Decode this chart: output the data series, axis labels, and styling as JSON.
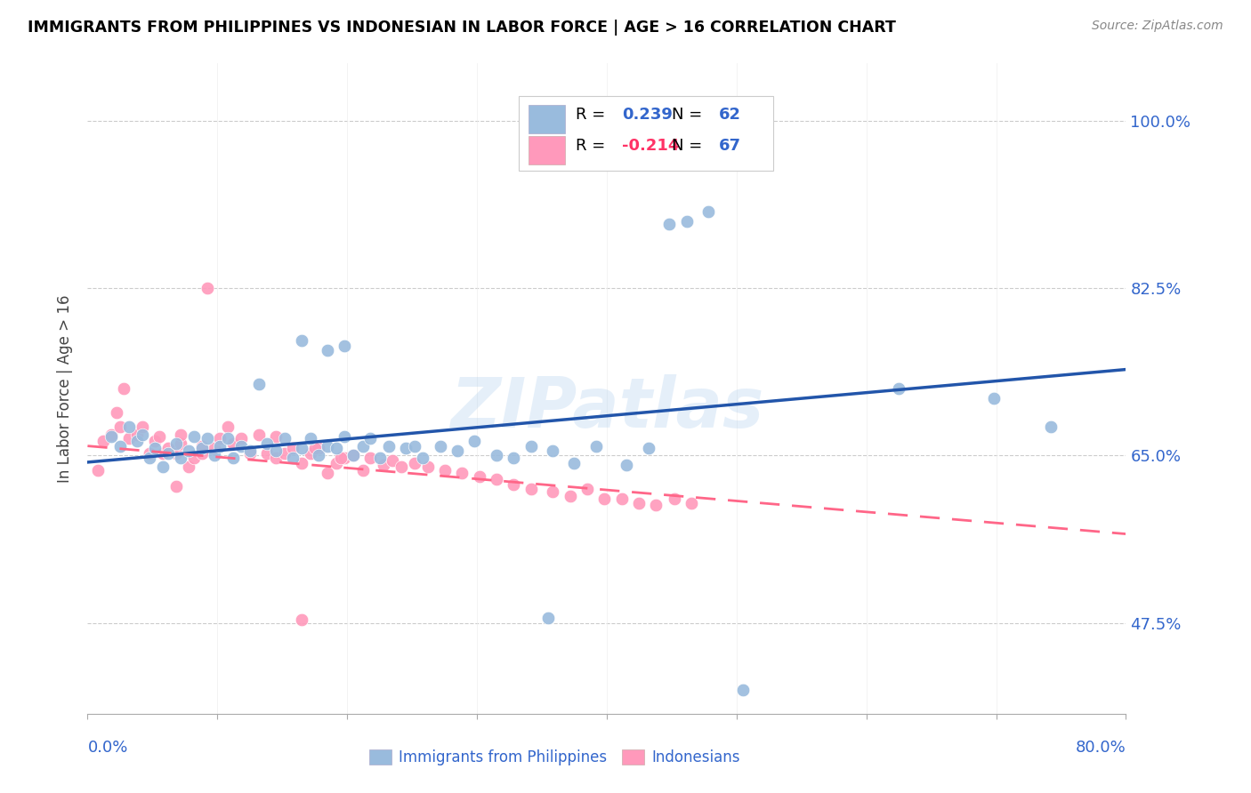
{
  "title": "IMMIGRANTS FROM PHILIPPINES VS INDONESIAN IN LABOR FORCE | AGE > 16 CORRELATION CHART",
  "source": "Source: ZipAtlas.com",
  "ylabel": "In Labor Force | Age > 16",
  "ytick_labels": [
    "47.5%",
    "65.0%",
    "82.5%",
    "100.0%"
  ],
  "ytick_values": [
    0.475,
    0.65,
    0.825,
    1.0
  ],
  "xlim": [
    0.0,
    0.8
  ],
  "ylim": [
    0.38,
    1.06
  ],
  "blue_color": "#99BBDD",
  "blue_line_color": "#2255AA",
  "pink_color": "#FF99BB",
  "pink_line_color": "#FF6688",
  "legend_r_blue": "R =  0.239",
  "legend_n_blue": "N = 62",
  "legend_r_pink": "R = -0.214",
  "legend_n_pink": "N = 67",
  "watermark": "ZIPatlas",
  "blue_x": [
    0.018,
    0.025,
    0.032,
    0.038,
    0.042,
    0.048,
    0.052,
    0.058,
    0.062,
    0.068,
    0.072,
    0.078,
    0.082,
    0.088,
    0.092,
    0.098,
    0.102,
    0.108,
    0.112,
    0.118,
    0.125,
    0.132,
    0.138,
    0.145,
    0.152,
    0.158,
    0.165,
    0.172,
    0.178,
    0.185,
    0.192,
    0.198,
    0.205,
    0.212,
    0.218,
    0.225,
    0.232,
    0.245,
    0.258,
    0.272,
    0.285,
    0.298,
    0.315,
    0.328,
    0.342,
    0.358,
    0.375,
    0.392,
    0.415,
    0.432,
    0.448,
    0.462,
    0.478,
    0.185,
    0.198,
    0.165,
    0.625,
    0.698,
    0.742,
    0.252,
    0.355,
    0.505
  ],
  "blue_y": [
    0.67,
    0.66,
    0.68,
    0.665,
    0.672,
    0.648,
    0.658,
    0.638,
    0.652,
    0.662,
    0.648,
    0.655,
    0.67,
    0.658,
    0.668,
    0.65,
    0.66,
    0.668,
    0.648,
    0.66,
    0.655,
    0.725,
    0.662,
    0.655,
    0.668,
    0.648,
    0.658,
    0.668,
    0.65,
    0.66,
    0.658,
    0.67,
    0.65,
    0.66,
    0.668,
    0.648,
    0.66,
    0.658,
    0.648,
    0.66,
    0.655,
    0.665,
    0.65,
    0.648,
    0.66,
    0.655,
    0.642,
    0.66,
    0.64,
    0.658,
    0.892,
    0.895,
    0.905,
    0.76,
    0.765,
    0.77,
    0.72,
    0.71,
    0.68,
    0.66,
    0.48,
    0.405
  ],
  "pink_x": [
    0.008,
    0.012,
    0.018,
    0.022,
    0.028,
    0.032,
    0.038,
    0.042,
    0.048,
    0.052,
    0.058,
    0.062,
    0.068,
    0.072,
    0.078,
    0.082,
    0.088,
    0.092,
    0.098,
    0.102,
    0.108,
    0.112,
    0.118,
    0.125,
    0.132,
    0.138,
    0.145,
    0.152,
    0.158,
    0.165,
    0.172,
    0.178,
    0.185,
    0.192,
    0.198,
    0.205,
    0.212,
    0.218,
    0.228,
    0.235,
    0.242,
    0.252,
    0.262,
    0.275,
    0.288,
    0.302,
    0.315,
    0.328,
    0.342,
    0.358,
    0.372,
    0.385,
    0.398,
    0.412,
    0.425,
    0.438,
    0.452,
    0.465,
    0.055,
    0.072,
    0.088,
    0.145,
    0.175,
    0.195,
    0.165,
    0.068,
    0.025
  ],
  "pink_y": [
    0.635,
    0.665,
    0.672,
    0.695,
    0.72,
    0.668,
    0.672,
    0.68,
    0.652,
    0.665,
    0.652,
    0.658,
    0.652,
    0.662,
    0.638,
    0.648,
    0.652,
    0.825,
    0.658,
    0.668,
    0.68,
    0.662,
    0.668,
    0.652,
    0.672,
    0.652,
    0.648,
    0.652,
    0.658,
    0.642,
    0.652,
    0.658,
    0.632,
    0.642,
    0.648,
    0.65,
    0.635,
    0.648,
    0.64,
    0.645,
    0.638,
    0.642,
    0.638,
    0.635,
    0.632,
    0.628,
    0.625,
    0.62,
    0.615,
    0.612,
    0.608,
    0.615,
    0.605,
    0.605,
    0.6,
    0.598,
    0.605,
    0.6,
    0.67,
    0.672,
    0.66,
    0.67,
    0.658,
    0.648,
    0.478,
    0.618,
    0.68
  ],
  "blue_trend_x": [
    0.0,
    0.8
  ],
  "blue_trend_y": [
    0.643,
    0.74
  ],
  "pink_trend_x": [
    0.0,
    0.8
  ],
  "pink_trend_y": [
    0.66,
    0.568
  ]
}
